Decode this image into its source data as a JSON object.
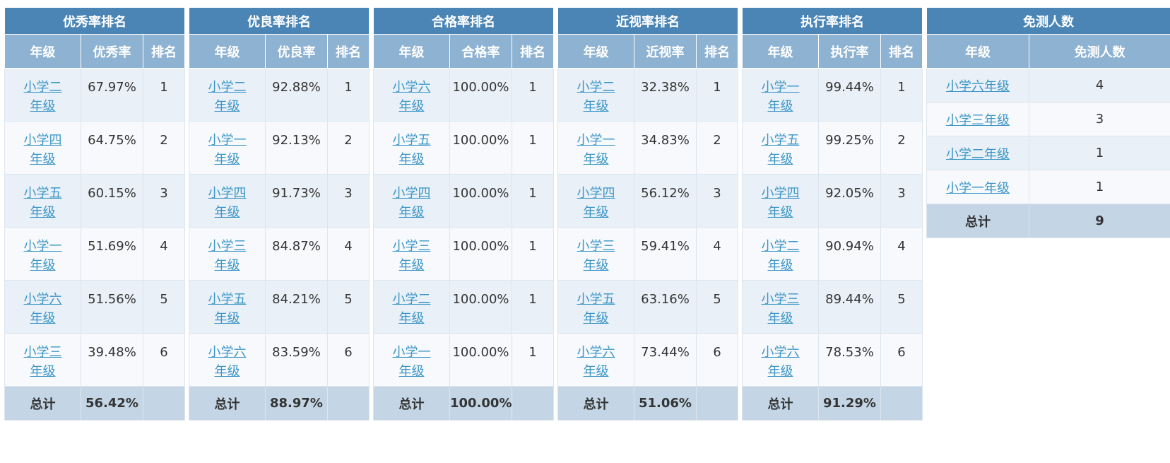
{
  "rank_tables": [
    {
      "title": "优秀率排名",
      "headers": [
        "年级",
        "优秀率",
        "排名"
      ],
      "rows": [
        {
          "grade": "小学二年级",
          "rate": "67.97%",
          "rank": "1"
        },
        {
          "grade": "小学四年级",
          "rate": "64.75%",
          "rank": "2"
        },
        {
          "grade": "小学五年级",
          "rate": "60.15%",
          "rank": "3"
        },
        {
          "grade": "小学一年级",
          "rate": "51.69%",
          "rank": "4"
        },
        {
          "grade": "小学六年级",
          "rate": "51.56%",
          "rank": "5"
        },
        {
          "grade": "小学三年级",
          "rate": "39.48%",
          "rank": "6"
        }
      ],
      "total": {
        "label": "总计",
        "rate": "56.42%"
      }
    },
    {
      "title": "优良率排名",
      "headers": [
        "年级",
        "优良率",
        "排名"
      ],
      "rows": [
        {
          "grade": "小学二年级",
          "rate": "92.88%",
          "rank": "1"
        },
        {
          "grade": "小学一年级",
          "rate": "92.13%",
          "rank": "2"
        },
        {
          "grade": "小学四年级",
          "rate": "91.73%",
          "rank": "3"
        },
        {
          "grade": "小学三年级",
          "rate": "84.87%",
          "rank": "4"
        },
        {
          "grade": "小学五年级",
          "rate": "84.21%",
          "rank": "5"
        },
        {
          "grade": "小学六年级",
          "rate": "83.59%",
          "rank": "6"
        }
      ],
      "total": {
        "label": "总计",
        "rate": "88.97%"
      }
    },
    {
      "title": "合格率排名",
      "headers": [
        "年级",
        "合格率",
        "排名"
      ],
      "rows": [
        {
          "grade": "小学六年级",
          "rate": "100.00%",
          "rank": "1"
        },
        {
          "grade": "小学五年级",
          "rate": "100.00%",
          "rank": "1"
        },
        {
          "grade": "小学四年级",
          "rate": "100.00%",
          "rank": "1"
        },
        {
          "grade": "小学三年级",
          "rate": "100.00%",
          "rank": "1"
        },
        {
          "grade": "小学二年级",
          "rate": "100.00%",
          "rank": "1"
        },
        {
          "grade": "小学一年级",
          "rate": "100.00%",
          "rank": "1"
        }
      ],
      "total": {
        "label": "总计",
        "rate": "100.00%"
      }
    },
    {
      "title": "近视率排名",
      "headers": [
        "年级",
        "近视率",
        "排名"
      ],
      "rows": [
        {
          "grade": "小学二年级",
          "rate": "32.38%",
          "rank": "1"
        },
        {
          "grade": "小学一年级",
          "rate": "34.83%",
          "rank": "2"
        },
        {
          "grade": "小学四年级",
          "rate": "56.12%",
          "rank": "3"
        },
        {
          "grade": "小学三年级",
          "rate": "59.41%",
          "rank": "4"
        },
        {
          "grade": "小学五年级",
          "rate": "63.16%",
          "rank": "5"
        },
        {
          "grade": "小学六年级",
          "rate": "73.44%",
          "rank": "6"
        }
      ],
      "total": {
        "label": "总计",
        "rate": "51.06%"
      }
    },
    {
      "title": "执行率排名",
      "headers": [
        "年级",
        "执行率",
        "排名"
      ],
      "rows": [
        {
          "grade": "小学一年级",
          "rate": "99.44%",
          "rank": "1"
        },
        {
          "grade": "小学五年级",
          "rate": "99.25%",
          "rank": "2"
        },
        {
          "grade": "小学四年级",
          "rate": "92.05%",
          "rank": "3"
        },
        {
          "grade": "小学二年级",
          "rate": "90.94%",
          "rank": "4"
        },
        {
          "grade": "小学三年级",
          "rate": "89.44%",
          "rank": "5"
        },
        {
          "grade": "小学六年级",
          "rate": "78.53%",
          "rank": "6"
        }
      ],
      "total": {
        "label": "总计",
        "rate": "91.29%"
      }
    }
  ],
  "exempt_table": {
    "title": "免测人数",
    "headers": [
      "年级",
      "免测人数"
    ],
    "rows": [
      {
        "grade": "小学六年级",
        "count": "4"
      },
      {
        "grade": "小学三年级",
        "count": "3"
      },
      {
        "grade": "小学二年级",
        "count": "1"
      },
      {
        "grade": "小学一年级",
        "count": "1"
      }
    ],
    "total": {
      "label": "总计",
      "count": "9"
    }
  },
  "colors": {
    "title_bg": "#4a85b6",
    "header_bg": "#8eb2d1",
    "row_odd_bg": "#e9f0f7",
    "row_even_bg": "#f7f9fc",
    "total_bg": "#c4d6e6",
    "link": "#3c96c8"
  }
}
